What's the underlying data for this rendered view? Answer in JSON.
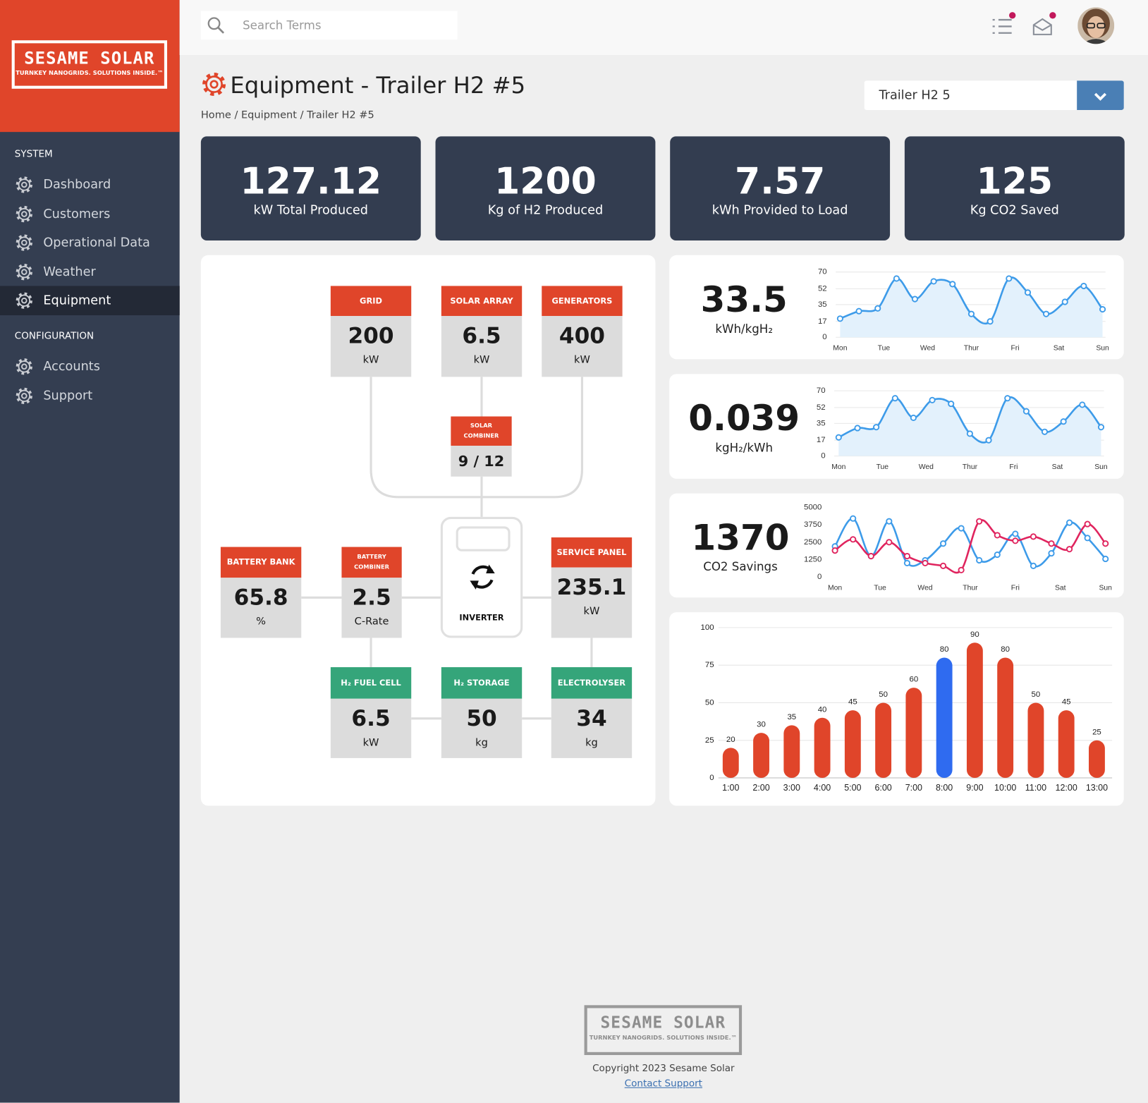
{
  "sidebar": {
    "logo": {
      "name": "SESAME SOLAR",
      "tagline": "TURNKEY NANOGRIDS. SOLUTIONS INSIDE.™"
    },
    "sections": [
      {
        "title": "SYSTEM",
        "items": [
          "Dashboard",
          "Customers",
          "Operational Data",
          "Weather",
          "Equipment"
        ]
      },
      {
        "title": "CONFIGURATION",
        "items": [
          "Accounts",
          "Support"
        ]
      }
    ],
    "active": "Equipment"
  },
  "header": {
    "search_placeholder": "Search Terms"
  },
  "page": {
    "title": "Equipment - Trailer H2 #5",
    "breadcrumb": "Home / Equipment / Trailer H2 #5",
    "selector": "Trailer H2 5"
  },
  "stats": [
    {
      "value": 127.12,
      "label": "kW Total Produced"
    },
    {
      "value": 1200,
      "label": "Kg of H2 Produced"
    },
    {
      "value": 7.57,
      "label": "kWh Provided to Load"
    },
    {
      "value": 125,
      "label": "Kg CO2 Saved"
    }
  ],
  "diagram": {
    "nodes": [
      {
        "label": "GRID",
        "value": 200,
        "unit": "kW",
        "color": "#e0452a"
      },
      {
        "label": "SOLAR ARRAY",
        "value": 6.5,
        "unit": "kW",
        "color": "#e0452a"
      },
      {
        "label": "GENERATORS",
        "value": 400,
        "unit": "kW",
        "color": "#e0452a"
      },
      {
        "label": "SOLAR COMBINER",
        "value": "9 / 12",
        "color": "#e0452a"
      },
      {
        "label": "BATTERY BANK",
        "value": 65.8,
        "unit": "%",
        "color": "#e0452a"
      },
      {
        "label": "BATTERY COMBINER",
        "value": 2.5,
        "unit": "C-Rate",
        "color": "#e0452a"
      },
      {
        "label": "INVERTER"
      },
      {
        "label": "SERVICE PANEL",
        "value": 235.1,
        "unit": "kW",
        "color": "#e0452a"
      },
      {
        "label": "H₂ FUEL CELL",
        "value": 6.5,
        "unit": "kW",
        "color": "#35a57a"
      },
      {
        "label": "H₂ STORAGE",
        "value": 50,
        "unit": "kg",
        "color": "#35a57a"
      },
      {
        "label": "ELECTROLYSER",
        "value": 34,
        "unit": "kg",
        "color": "#35a57a"
      }
    ]
  },
  "metrics": [
    {
      "value": 33.5,
      "unit": "kWh/kgH₂"
    },
    {
      "value": 0.039,
      "unit": "kgH₂/kWh"
    },
    {
      "value": 1370,
      "unit": "CO2 Savings"
    }
  ],
  "footer": {
    "copyright": "Copyright 2023 Sesame Solar",
    "link": "Contact Support"
  },
  "chart_data": [
    {
      "type": "line",
      "area": true,
      "grid": true,
      "x": [
        0,
        0.43,
        0.86,
        1.29,
        1.71,
        2.14,
        2.57,
        3,
        3.43,
        3.86,
        4.29,
        4.71,
        5.14,
        5.57,
        6
      ],
      "xlim": [
        0,
        6
      ],
      "xticks": [
        {
          "value": 0,
          "label": "Mon"
        },
        {
          "value": 1,
          "label": "Tue"
        },
        {
          "value": 2,
          "label": "Wed"
        },
        {
          "value": 3,
          "label": "Thur"
        },
        {
          "value": 4,
          "label": "Fri"
        },
        {
          "value": 5,
          "label": "Sat"
        },
        {
          "value": 6,
          "label": "Sun"
        }
      ],
      "ylim": [
        0,
        70
      ],
      "yticks": [
        0,
        17,
        35,
        52,
        70
      ],
      "series": [
        {
          "color": "#3d9be9",
          "values": [
            20,
            28,
            31,
            63,
            41,
            60,
            57,
            25,
            17,
            63,
            48,
            25,
            38,
            55,
            30
          ]
        }
      ]
    },
    {
      "type": "line",
      "area": true,
      "grid": true,
      "x": [
        0,
        0.43,
        0.86,
        1.29,
        1.71,
        2.14,
        2.57,
        3,
        3.43,
        3.86,
        4.29,
        4.71,
        5.14,
        5.57,
        6
      ],
      "xlim": [
        0,
        6
      ],
      "xticks": [
        {
          "value": 0,
          "label": "Mon"
        },
        {
          "value": 1,
          "label": "Tue"
        },
        {
          "value": 2,
          "label": "Wed"
        },
        {
          "value": 3,
          "label": "Thur"
        },
        {
          "value": 4,
          "label": "Fri"
        },
        {
          "value": 5,
          "label": "Sat"
        },
        {
          "value": 6,
          "label": "Sun"
        }
      ],
      "ylim": [
        0,
        70
      ],
      "yticks": [
        0,
        17,
        35,
        52,
        70
      ],
      "series": [
        {
          "color": "#3d9be9",
          "values": [
            20,
            30,
            31,
            62,
            41,
            60,
            56,
            24,
            17,
            62,
            48,
            26,
            37,
            55,
            31
          ]
        }
      ]
    },
    {
      "type": "line",
      "area": false,
      "grid": false,
      "x": [
        0,
        0.4,
        0.8,
        1.2,
        1.6,
        2,
        2.4,
        2.8,
        3.2,
        3.6,
        4,
        4.4,
        4.8,
        5.2,
        5.6,
        6
      ],
      "xlim": [
        0,
        6
      ],
      "xticks": [
        {
          "value": 0,
          "label": "Mon"
        },
        {
          "value": 1,
          "label": "Tue"
        },
        {
          "value": 2,
          "label": "Wed"
        },
        {
          "value": 3,
          "label": "Thur"
        },
        {
          "value": 4,
          "label": "Fri"
        },
        {
          "value": 5,
          "label": "Sat"
        },
        {
          "value": 6,
          "label": "Sun"
        }
      ],
      "ylim": [
        0,
        5000
      ],
      "yticks": [
        0,
        1250,
        2500,
        3750,
        5000
      ],
      "series": [
        {
          "color": "#3d9be9",
          "values": [
            2200,
            4200,
            1500,
            4000,
            1000,
            1200,
            2400,
            3500,
            1200,
            1600,
            3100,
            800,
            1700,
            3900,
            2800,
            1300
          ]
        },
        {
          "color": "#e0245e",
          "values": [
            1900,
            2700,
            1500,
            2500,
            1500,
            1000,
            800,
            500,
            4000,
            3000,
            2600,
            2900,
            2400,
            2000,
            3800,
            2400
          ]
        }
      ]
    },
    {
      "type": "bar",
      "grid": true,
      "categories": [
        "1:00",
        "2:00",
        "3:00",
        "4:00",
        "5:00",
        "6:00",
        "7:00",
        "8:00",
        "9:00",
        "10:00",
        "11:00",
        "12:00",
        "13:00"
      ],
      "values": [
        20,
        30,
        35,
        40,
        45,
        50,
        60,
        80,
        90,
        80,
        50,
        45,
        25
      ],
      "colors": [
        "#e0452a",
        "#e0452a",
        "#e0452a",
        "#e0452a",
        "#e0452a",
        "#e0452a",
        "#e0452a",
        "#2f6bf0",
        "#e0452a",
        "#e0452a",
        "#e0452a",
        "#e0452a",
        "#e0452a"
      ],
      "ylim": [
        0,
        100
      ],
      "yticks": [
        0,
        25,
        50,
        75,
        100
      ]
    }
  ]
}
